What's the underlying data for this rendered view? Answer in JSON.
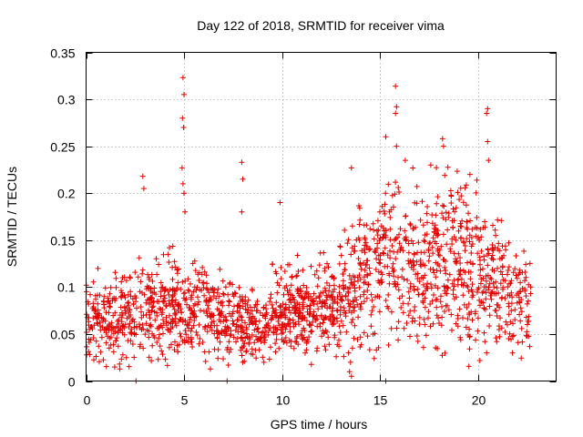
{
  "chart_data": {
    "type": "scatter",
    "title": "Day 122 of 2018, SRMTID for receiver vima",
    "xlabel": "GPS time / hours",
    "ylabel": "SRMTID / TECUs",
    "xlim": [
      0,
      24
    ],
    "ylim": [
      0,
      0.35
    ],
    "x_ticks": [
      0,
      5,
      10,
      15,
      20
    ],
    "x_tick_labels": [
      "0",
      "5",
      "10",
      "15",
      "20"
    ],
    "y_ticks": [
      0,
      0.05,
      0.1,
      0.15,
      0.2,
      0.25,
      0.3,
      0.35
    ],
    "y_tick_labels": [
      "0",
      "0.05",
      "0.1",
      "0.15",
      "0.2",
      "0.25",
      "0.3",
      "0.35"
    ],
    "grid": true,
    "marker": "plus",
    "color": "#e00000",
    "baseline": [
      [
        0,
        0.065
      ],
      [
        2,
        0.07
      ],
      [
        3,
        0.08
      ],
      [
        4,
        0.085
      ],
      [
        5,
        0.075
      ],
      [
        6,
        0.075
      ],
      [
        7,
        0.065
      ],
      [
        8,
        0.06
      ],
      [
        9,
        0.06
      ],
      [
        10,
        0.07
      ],
      [
        11,
        0.07
      ],
      [
        12,
        0.075
      ],
      [
        13,
        0.09
      ],
      [
        14,
        0.11
      ],
      [
        15,
        0.13
      ],
      [
        16,
        0.125
      ],
      [
        17,
        0.12
      ],
      [
        18,
        0.13
      ],
      [
        19,
        0.13
      ],
      [
        20,
        0.12
      ],
      [
        21,
        0.1
      ],
      [
        22,
        0.09
      ],
      [
        22.7,
        0.08
      ]
    ],
    "spikes": [
      [
        2.9,
        0.218
      ],
      [
        2.95,
        0.205
      ],
      [
        4.95,
        0.323
      ],
      [
        5.0,
        0.305
      ],
      [
        4.92,
        0.28
      ],
      [
        4.98,
        0.27
      ],
      [
        4.9,
        0.227
      ],
      [
        4.95,
        0.21
      ],
      [
        5.0,
        0.2
      ],
      [
        5.05,
        0.18
      ],
      [
        7.95,
        0.233
      ],
      [
        8.0,
        0.215
      ],
      [
        7.95,
        0.18
      ],
      [
        9.9,
        0.19
      ],
      [
        15.8,
        0.314
      ],
      [
        15.85,
        0.292
      ],
      [
        15.8,
        0.285
      ],
      [
        15.85,
        0.25
      ],
      [
        18.2,
        0.258
      ],
      [
        18.25,
        0.25
      ],
      [
        20.5,
        0.29
      ],
      [
        20.45,
        0.285
      ],
      [
        20.5,
        0.255
      ],
      [
        20.55,
        0.235
      ],
      [
        15.3,
        0.26
      ],
      [
        13.55,
        0.227
      ],
      [
        19.6,
        0.22
      ],
      [
        17.6,
        0.23
      ],
      [
        16.3,
        0.235
      ]
    ],
    "drops": [
      [
        13.45,
        0.01
      ],
      [
        13.5,
        0.02
      ],
      [
        13.55,
        0.005
      ],
      [
        13.4,
        0.03
      ],
      [
        13.6,
        0.035
      ],
      [
        2.55,
        0.0
      ],
      [
        7.2,
        0.0
      ],
      [
        15.3,
        0.0
      ],
      [
        20.45,
        0.03
      ],
      [
        8.0,
        0.02
      ]
    ],
    "point_count": 1900,
    "seed": 122
  }
}
